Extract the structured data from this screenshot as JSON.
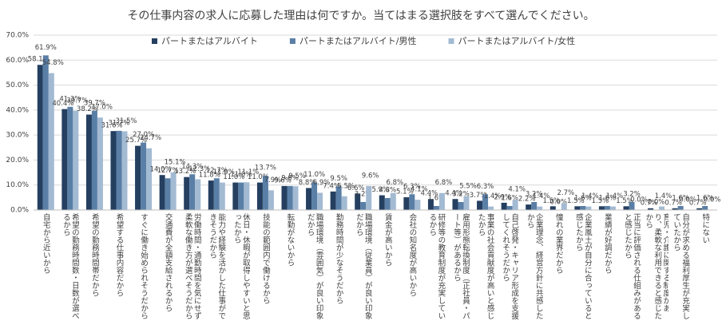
{
  "chart_data": {
    "type": "bar",
    "title": "その仕事内容の求人に応募した理由は何ですか。当てはまる選択肢をすべて選んでください。",
    "categories": [
      "自宅から近いから",
      "希望の勤務時間数・日数が選べるから",
      "希望の勤務時間帯だから",
      "希望する仕事内容だから",
      "すぐに働き始められそうだから",
      "交通費が全額支給されるから",
      "労働時間・通勤時間を気にせず柔軟な働き方が選べそうだから",
      "能力や経験を活かした仕事ができそうだから",
      "休日・休暇が取得しやすいと思ったから",
      "技能の範囲内で働けるから",
      "転勤がないから",
      "職場環境（雰囲気）が良い印象だから",
      "勤務時間が少なそうだから",
      "職場環境（従業員）が良い印象だから",
      "賃金が高いから",
      "会社の知名度が高いから",
      "研修等の教育制度が充実しているから",
      "雇用形態転換制度（正社員・パート等）があるから",
      "事業の社会貢献度が高いと感じたから",
      "自己啓発・キャリア形成を支援してくれそうだから",
      "企業理念、経営方針に共感したから",
      "憧れの業界だから",
      "企業風土が自分に合っていると感じたから",
      "業績が好調だから",
      "正当に評価される仕組みがあると感じたから",
      "育児・介護に関する制度があり、柔軟な利用できると感じたから",
      "自分が求める福利厚生が充実していたから",
      "特にない"
    ],
    "series": [
      {
        "name": "パートまたはアルバイト",
        "color": "#243f60",
        "values": [
          58.1,
          40.4,
          38.2,
          31.6,
          25.7,
          14.0,
          13.2,
          11.8,
          11.0,
          11.0,
          9.6,
          8.8,
          7.4,
          6.6,
          5.9,
          5.1,
          4.4,
          4.4,
          3.7,
          2.9,
          2.2,
          1.5,
          1.5,
          1.5,
          1.5,
          0.7,
          0.7,
          0.7
        ],
        "value_labels": [
          "58.1%",
          "40.4%",
          "38.2%",
          "31.6%",
          "25.7%",
          "14.0%",
          "13.2%",
          "11.8%",
          "11.0%",
          "11.0%",
          "9.6%",
          "8.8%",
          "7.4%",
          "6.6%",
          "5.9%",
          "5.1%",
          "4.4%",
          "4.4%",
          "3.7%",
          "2.9%",
          "2.2%",
          "1.5%",
          "1.5%",
          "1.5%",
          "1.5%",
          "0.7%",
          "0.7%",
          "0.7%"
        ]
      },
      {
        "name": "パートまたはアルバイト/男性",
        "color": "#5a7fa6",
        "values": [
          61.9,
          41.3,
          39.7,
          31.7,
          27.0,
          12.7,
          14.3,
          12.7,
          11.0,
          13.7,
          9.6,
          11.0,
          9.5,
          3.2,
          4.8,
          6.3,
          1.6,
          3.2,
          6.3,
          1.6,
          3.2,
          0.0,
          1.6,
          1.6,
          3.2,
          0.0,
          1.6,
          1.6
        ],
        "value_labels": [
          "61.9%",
          "41.3%",
          "39.7%",
          "31.7%",
          "27.0%",
          "12.7%",
          "14.3%",
          "12.7%",
          "11.0%",
          "13.7%",
          "9.6%",
          "11.0%",
          "9.5%",
          "3.2%",
          "4.8%",
          "6.3%",
          "1.6%",
          "3.2%",
          "6.3%",
          "1.6%",
          "3.2%",
          "0.0%",
          "1.6%",
          "1.6%",
          "3.2%",
          "0.0%",
          "1.6%",
          "1.6%"
        ]
      },
      {
        "name": "パートまたはアルバイト/女性",
        "color": "#a3bad3",
        "values": [
          54.8,
          39.7,
          37.0,
          31.5,
          24.7,
          15.1,
          12.3,
          11.0,
          11.1,
          7.9,
          9.5,
          6.9,
          5.5,
          9.6,
          6.8,
          4.1,
          6.8,
          5.5,
          1.4,
          4.1,
          1.4,
          2.7,
          1.4,
          1.4,
          0.0,
          1.4,
          0.0,
          0.0
        ],
        "value_labels": [
          "54.8%",
          "39.7%",
          "37.0%",
          "31.5%",
          "24.7%",
          "15.1%",
          "12.3%",
          "11.0%",
          "11.1%",
          "7.9%",
          "9.5%",
          "6.9%",
          "5.5%",
          "9.6%",
          "6.8%",
          "4.1%",
          "6.8%",
          "5.5%",
          "1.4%",
          "4.1%",
          "1.4%",
          "2.7%",
          "1.4%",
          "1.4%",
          "0.0%",
          "1.4%",
          "0.0%",
          "0.0%"
        ]
      }
    ],
    "ylim": [
      0,
      70
    ],
    "yticks": [
      {
        "value": 0,
        "label": "0.0%"
      },
      {
        "value": 10,
        "label": "10.0%"
      },
      {
        "value": 20,
        "label": "20.0%"
      },
      {
        "value": 30,
        "label": "30.0%"
      },
      {
        "value": 40,
        "label": "40.0%"
      },
      {
        "value": 50,
        "label": "50.0%"
      },
      {
        "value": 60,
        "label": "60.0%"
      },
      {
        "value": 70,
        "label": "70.0%"
      }
    ],
    "grid": true,
    "legend": "top"
  }
}
